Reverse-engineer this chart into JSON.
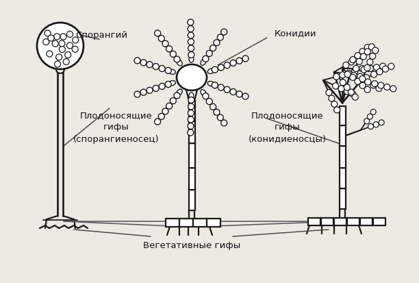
{
  "background_color": "#ede9e3",
  "line_color": "#1a1a1a",
  "line_width": 1.6,
  "labels": {
    "sporangium": "Спорангий",
    "conidia": "Конидии",
    "hyphae_left": "Плодоносящие\nгифы\n(спорангиеносец)",
    "hyphae_right": "Плодоносящие\nгифы\n(конидиеносцы)",
    "vegetative": "Вегетативные гифы"
  },
  "fig_width": 6.12,
  "fig_height": 4.14,
  "dpi": 100
}
